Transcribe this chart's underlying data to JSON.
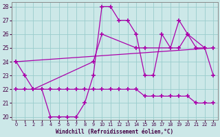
{
  "xlabel": "Windchill (Refroidissement éolien,°C)",
  "x_all": [
    0,
    1,
    2,
    3,
    4,
    5,
    6,
    7,
    8,
    9,
    10,
    11,
    12,
    13,
    14,
    15,
    16,
    17,
    18,
    19,
    20,
    21,
    22,
    23
  ],
  "line1_x": [
    0,
    1,
    2,
    3,
    4,
    5,
    6,
    7,
    8,
    9,
    10,
    11,
    12,
    13,
    14,
    15,
    16,
    17,
    18,
    19,
    20,
    21,
    22,
    23
  ],
  "line1_y": [
    24,
    23,
    22,
    22,
    20,
    20,
    20,
    20,
    21,
    23,
    28,
    28,
    27,
    27,
    26,
    23,
    23,
    26,
    25,
    27,
    26,
    25,
    25,
    23
  ],
  "line2_x": [
    0,
    23
  ],
  "line2_y": [
    24,
    25
  ],
  "line3_x": [
    2,
    9,
    10,
    14,
    15,
    19,
    20,
    22
  ],
  "line3_y": [
    22,
    24,
    26,
    25,
    25,
    25,
    26,
    25
  ],
  "line4_x": [
    0,
    1,
    2,
    3,
    4,
    5,
    6,
    7,
    8,
    9,
    10,
    11,
    12,
    13,
    14,
    15,
    16,
    17,
    18,
    19,
    20,
    21,
    22,
    23
  ],
  "line4_y": [
    22,
    22,
    22,
    22,
    22,
    22,
    22,
    22,
    22,
    22,
    22,
    22,
    22,
    22,
    22,
    21.5,
    21.5,
    21.5,
    21.5,
    21.5,
    21.5,
    21,
    21,
    21
  ],
  "ylim": [
    19.8,
    28.3
  ],
  "xlim": [
    -0.5,
    23.5
  ],
  "yticks": [
    20,
    21,
    22,
    23,
    24,
    25,
    26,
    27,
    28
  ],
  "bg_color": "#cce8e8",
  "line_color": "#aa00aa",
  "grid_color": "#99cccc"
}
